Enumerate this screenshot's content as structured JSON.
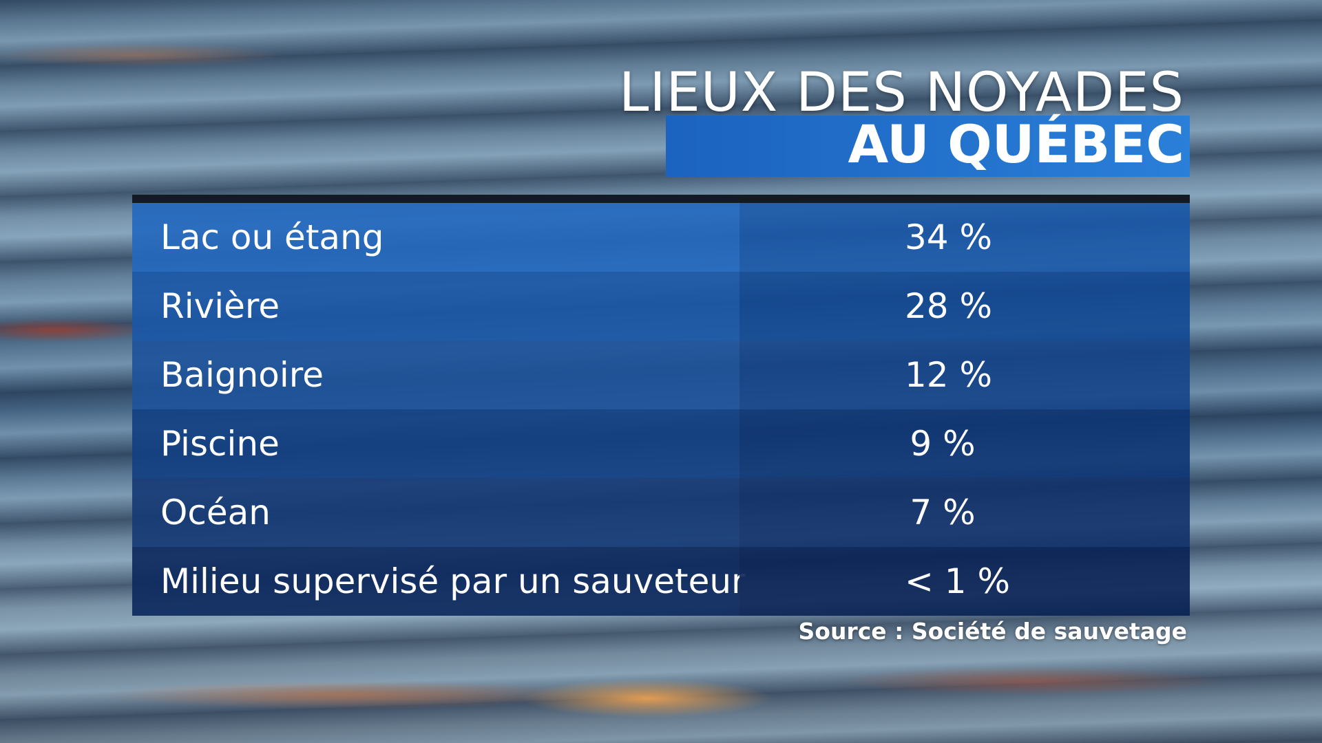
{
  "header": {
    "title": "LIEUX DES NOYADES",
    "subtitle": "AU QUÉBEC"
  },
  "table": {
    "rows": [
      [
        "Lac ou étang",
        "34 %"
      ],
      [
        "Rivière",
        "28 %"
      ],
      [
        "Baignoire",
        "12 %"
      ],
      [
        "Piscine",
        "9 %"
      ],
      [
        "Océan",
        "7 %"
      ],
      [
        "Milieu supervisé par un sauveteur",
        "< 1 %"
      ]
    ]
  },
  "footer": {
    "source": "Source : Société de sauvetage"
  }
}
